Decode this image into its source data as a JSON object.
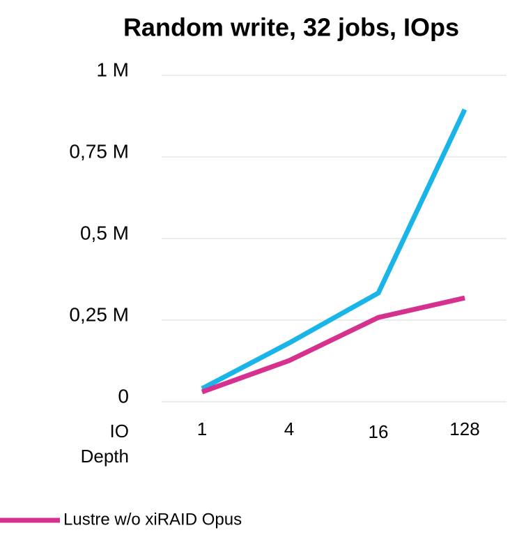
{
  "chart_data": {
    "type": "line",
    "title": "Random write, 32 jobs, IOps",
    "x_label": "IO Depth",
    "categories": [
      "1",
      "4",
      "16",
      "128"
    ],
    "series": [
      {
        "color": "#19b5e8",
        "values": [
          40000,
          180000,
          333000,
          895000
        ]
      },
      {
        "name": "Lustre w/o xiRAID Opus",
        "color": "#d6318e",
        "values": [
          30000,
          126000,
          258000,
          318000
        ]
      }
    ],
    "ylim": [
      0,
      1000000
    ],
    "yticks": [
      0,
      {
        "value": 250000,
        "label": "0,25 M"
      },
      {
        "value": 500000,
        "label": "0,5 M"
      },
      {
        "value": 750000,
        "label": "0,75 M"
      },
      {
        "value": 1000000,
        "label": "1 M"
      }
    ],
    "grid": true
  }
}
